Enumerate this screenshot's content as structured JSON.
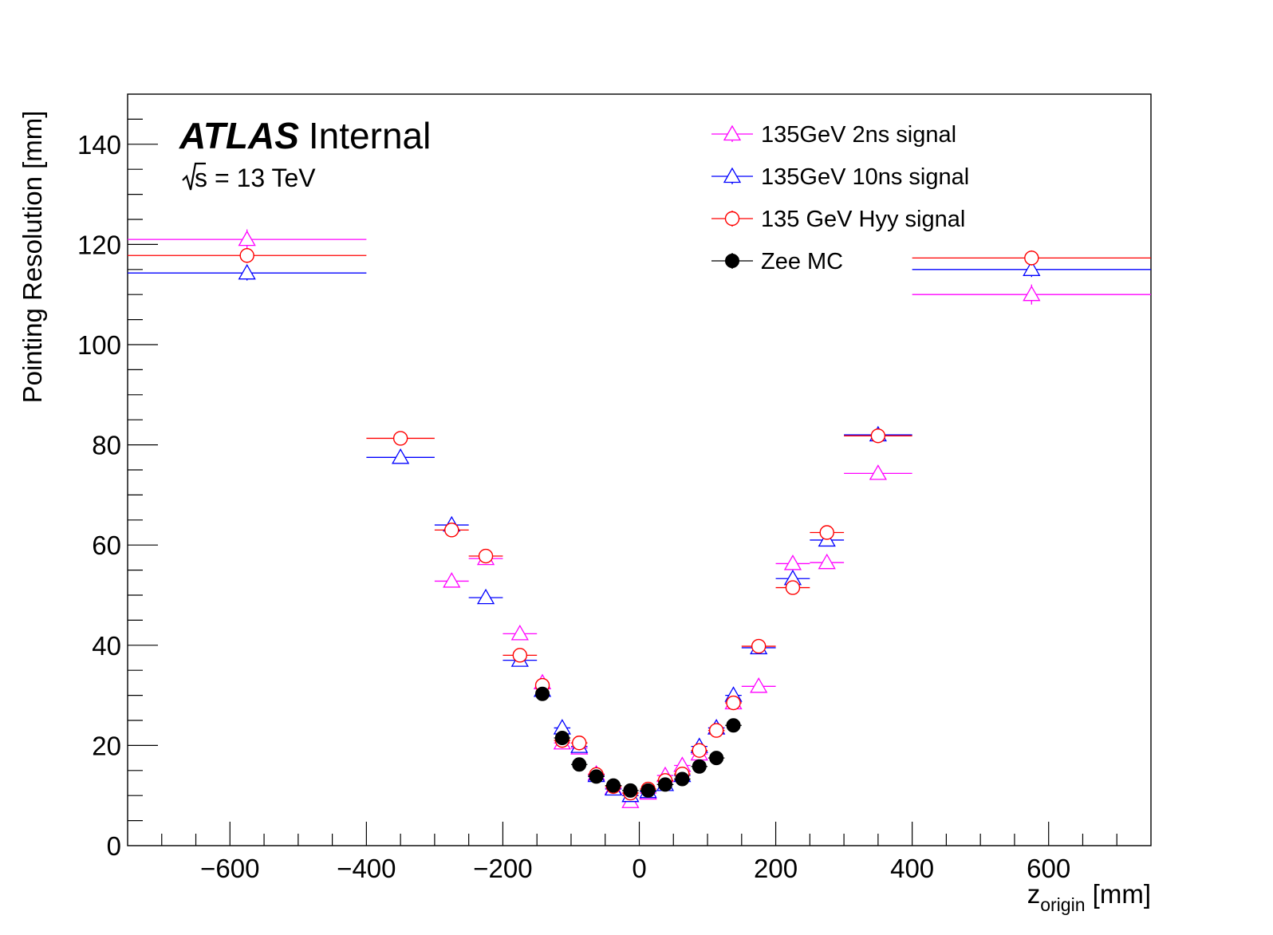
{
  "chart_data": {
    "type": "scatter",
    "xlabel_main": "z",
    "xlabel_sub": "origin",
    "xlabel_unit": "[mm]",
    "ylabel": "Pointing Resolution [mm]",
    "xlim": [
      -750,
      750
    ],
    "ylim": [
      0,
      150
    ],
    "x_ticks": [
      -600,
      -400,
      -200,
      0,
      200,
      400,
      600
    ],
    "x_tick_labels": [
      "−600",
      "−400",
      "−200",
      "0",
      "200",
      "400",
      "600"
    ],
    "y_ticks": [
      0,
      20,
      40,
      60,
      80,
      100,
      120,
      140
    ],
    "y_tick_labels": [
      "0",
      "20",
      "40",
      "60",
      "80",
      "100",
      "120",
      "140"
    ],
    "grid": false,
    "legend_position": "top-right",
    "annotations": {
      "experiment": "ATLAS",
      "status": "Internal",
      "energy_root": "s",
      "energy_rest": "= 13 TeV"
    },
    "series": [
      {
        "name": "135GeV 2ns signal",
        "color": "#ff00ff",
        "marker": "open-triangle",
        "points": [
          {
            "x": -575,
            "xerr": 175,
            "y": 121,
            "yerr": 2
          },
          {
            "x": -275,
            "xerr": 25,
            "y": 52.8,
            "yerr": 0.8
          },
          {
            "x": -225,
            "xerr": 25,
            "y": 57.3,
            "yerr": 0.7
          },
          {
            "x": -175,
            "xerr": 25,
            "y": 42.3,
            "yerr": 0.7
          },
          {
            "x": -142,
            "xerr": 8,
            "y": 32.5,
            "yerr": 0.5
          },
          {
            "x": -113,
            "xerr": 12,
            "y": 20.5,
            "yerr": 0.4
          },
          {
            "x": -88,
            "xerr": 12,
            "y": 19.5,
            "yerr": 0.4
          },
          {
            "x": -63,
            "xerr": 12,
            "y": 14.3,
            "yerr": 0.4
          },
          {
            "x": -38,
            "xerr": 12,
            "y": 11.5,
            "yerr": 0.3
          },
          {
            "x": -13,
            "xerr": 12,
            "y": 8.8,
            "yerr": 0.3
          },
          {
            "x": 13,
            "xerr": 12,
            "y": 10.5,
            "yerr": 0.3
          },
          {
            "x": 38,
            "xerr": 12,
            "y": 14,
            "yerr": 0.3
          },
          {
            "x": 63,
            "xerr": 12,
            "y": 16,
            "yerr": 0.4
          },
          {
            "x": 88,
            "xerr": 12,
            "y": 18.3,
            "yerr": 0.4
          },
          {
            "x": 113,
            "xerr": 12,
            "y": 23.5,
            "yerr": 0.5
          },
          {
            "x": 138,
            "xerr": 12,
            "y": 28.5,
            "yerr": 0.5
          },
          {
            "x": 175,
            "xerr": 25,
            "y": 31.8,
            "yerr": 0.6
          },
          {
            "x": 225,
            "xerr": 25,
            "y": 56.3,
            "yerr": 0.8
          },
          {
            "x": 275,
            "xerr": 25,
            "y": 56.5,
            "yerr": 0.8
          },
          {
            "x": 350,
            "xerr": 50,
            "y": 74.3,
            "yerr": 0.9
          },
          {
            "x": 575,
            "xerr": 175,
            "y": 110,
            "yerr": 2
          }
        ]
      },
      {
        "name": "135GeV 10ns signal",
        "color": "#0000ff",
        "marker": "open-triangle",
        "points": [
          {
            "x": -575,
            "xerr": 175,
            "y": 114.3,
            "yerr": 1.5
          },
          {
            "x": -350,
            "xerr": 50,
            "y": 77.5,
            "yerr": 1
          },
          {
            "x": -275,
            "xerr": 25,
            "y": 64,
            "yerr": 0.8
          },
          {
            "x": -225,
            "xerr": 25,
            "y": 49.5,
            "yerr": 0.7
          },
          {
            "x": -175,
            "xerr": 25,
            "y": 37,
            "yerr": 0.6
          },
          {
            "x": -142,
            "xerr": 8,
            "y": 31,
            "yerr": 0.5
          },
          {
            "x": -113,
            "xerr": 12,
            "y": 23.5,
            "yerr": 0.4
          },
          {
            "x": -88,
            "xerr": 12,
            "y": 19.8,
            "yerr": 0.4
          },
          {
            "x": -63,
            "xerr": 12,
            "y": 14,
            "yerr": 0.3
          },
          {
            "x": -38,
            "xerr": 12,
            "y": 11.3,
            "yerr": 0.3
          },
          {
            "x": -13,
            "xerr": 12,
            "y": 10,
            "yerr": 0.3
          },
          {
            "x": 13,
            "xerr": 12,
            "y": 10.8,
            "yerr": 0.3
          },
          {
            "x": 38,
            "xerr": 12,
            "y": 12.2,
            "yerr": 0.3
          },
          {
            "x": 63,
            "xerr": 12,
            "y": 14,
            "yerr": 0.3
          },
          {
            "x": 88,
            "xerr": 12,
            "y": 19.8,
            "yerr": 0.4
          },
          {
            "x": 113,
            "xerr": 12,
            "y": 23.5,
            "yerr": 0.5
          },
          {
            "x": 138,
            "xerr": 12,
            "y": 30,
            "yerr": 0.5
          },
          {
            "x": 175,
            "xerr": 25,
            "y": 39.5,
            "yerr": 0.6
          },
          {
            "x": 225,
            "xerr": 25,
            "y": 53.3,
            "yerr": 0.8
          },
          {
            "x": 275,
            "xerr": 25,
            "y": 61,
            "yerr": 0.8
          },
          {
            "x": 350,
            "xerr": 50,
            "y": 82,
            "yerr": 1
          },
          {
            "x": 575,
            "xerr": 175,
            "y": 115,
            "yerr": 1.5
          }
        ]
      },
      {
        "name": "135 GeV Hyy signal",
        "color": "#ff0000",
        "marker": "open-circle",
        "points": [
          {
            "x": -575,
            "xerr": 175,
            "y": 117.8,
            "yerr": 1.5
          },
          {
            "x": -350,
            "xerr": 50,
            "y": 81.3,
            "yerr": 1
          },
          {
            "x": -275,
            "xerr": 25,
            "y": 63,
            "yerr": 0.8
          },
          {
            "x": -225,
            "xerr": 25,
            "y": 57.8,
            "yerr": 0.7
          },
          {
            "x": -175,
            "xerr": 25,
            "y": 38,
            "yerr": 0.6
          },
          {
            "x": -142,
            "xerr": 8,
            "y": 32,
            "yerr": 0.5
          },
          {
            "x": -113,
            "xerr": 12,
            "y": 21,
            "yerr": 0.4
          },
          {
            "x": -88,
            "xerr": 12,
            "y": 20.5,
            "yerr": 0.4
          },
          {
            "x": -63,
            "xerr": 12,
            "y": 14.2,
            "yerr": 0.3
          },
          {
            "x": -38,
            "xerr": 12,
            "y": 11.8,
            "yerr": 0.3
          },
          {
            "x": -13,
            "xerr": 12,
            "y": 10.5,
            "yerr": 0.3
          },
          {
            "x": 13,
            "xerr": 12,
            "y": 11.3,
            "yerr": 0.3
          },
          {
            "x": 38,
            "xerr": 12,
            "y": 13,
            "yerr": 0.3
          },
          {
            "x": 63,
            "xerr": 12,
            "y": 14.3,
            "yerr": 0.3
          },
          {
            "x": 88,
            "xerr": 12,
            "y": 19,
            "yerr": 0.4
          },
          {
            "x": 113,
            "xerr": 12,
            "y": 23,
            "yerr": 0.5
          },
          {
            "x": 138,
            "xerr": 12,
            "y": 28.5,
            "yerr": 0.5
          },
          {
            "x": 175,
            "xerr": 25,
            "y": 39.8,
            "yerr": 0.6
          },
          {
            "x": 225,
            "xerr": 25,
            "y": 51.5,
            "yerr": 0.8
          },
          {
            "x": 275,
            "xerr": 25,
            "y": 62.5,
            "yerr": 0.8
          },
          {
            "x": 350,
            "xerr": 50,
            "y": 81.8,
            "yerr": 1
          },
          {
            "x": 575,
            "xerr": 175,
            "y": 117.3,
            "yerr": 1.5
          }
        ]
      },
      {
        "name": "Zee MC",
        "color": "#000000",
        "marker": "filled-circle",
        "points": [
          {
            "x": -142,
            "xerr": 8,
            "y": 30.3,
            "yerr": 0.4
          },
          {
            "x": -113,
            "xerr": 12,
            "y": 21.5,
            "yerr": 0.3
          },
          {
            "x": -88,
            "xerr": 12,
            "y": 16.2,
            "yerr": 0.2
          },
          {
            "x": -63,
            "xerr": 12,
            "y": 13.8,
            "yerr": 0.2
          },
          {
            "x": -38,
            "xerr": 12,
            "y": 12,
            "yerr": 0.2
          },
          {
            "x": -13,
            "xerr": 12,
            "y": 11,
            "yerr": 0.2
          },
          {
            "x": 13,
            "xerr": 12,
            "y": 11,
            "yerr": 0.2
          },
          {
            "x": 38,
            "xerr": 12,
            "y": 12.2,
            "yerr": 0.2
          },
          {
            "x": 63,
            "xerr": 12,
            "y": 13.3,
            "yerr": 0.2
          },
          {
            "x": 88,
            "xerr": 12,
            "y": 15.8,
            "yerr": 0.2
          },
          {
            "x": 113,
            "xerr": 12,
            "y": 17.5,
            "yerr": 0.3
          },
          {
            "x": 138,
            "xerr": 12,
            "y": 24,
            "yerr": 0.3
          }
        ]
      }
    ]
  }
}
